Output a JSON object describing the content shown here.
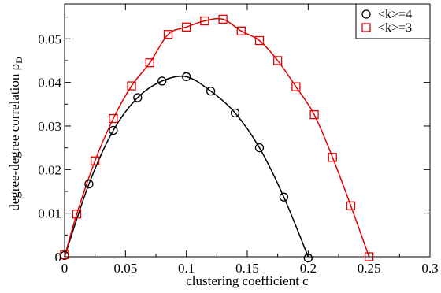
{
  "chart_data": {
    "type": "scatter",
    "xlabel": "clustering coefficient c",
    "ylabel_main": "degree-degree correlation ρ",
    "ylabel_sub": "D",
    "xlim": [
      0,
      0.3
    ],
    "ylim": [
      0,
      0.058
    ],
    "x_ticks": [
      0,
      0.05,
      0.1,
      0.15,
      0.2,
      0.25,
      0.3
    ],
    "x_tick_labels": [
      "0",
      "0.05",
      "0.1",
      "0.15",
      "0.2",
      "0.25",
      "0.3"
    ],
    "y_ticks": [
      0,
      0.01,
      0.02,
      0.03,
      0.04,
      0.05
    ],
    "y_tick_labels": [
      "0",
      "0.01",
      "0.02",
      "0.03",
      "0.04",
      "0.05"
    ],
    "legend_position": "top-right",
    "grid": false,
    "series": [
      {
        "name": "<k>=4",
        "marker": "circle",
        "color": "#000000",
        "x": [
          0,
          0.02,
          0.04,
          0.06,
          0.08,
          0.1,
          0.12,
          0.14,
          0.16,
          0.18,
          0.2
        ],
        "y": [
          0.0003,
          0.0167,
          0.029,
          0.0365,
          0.0403,
          0.0413,
          0.038,
          0.033,
          0.025,
          0.0137,
          -0.0003
        ]
      },
      {
        "name": "<k>=3",
        "marker": "square",
        "color": "#e00000",
        "x": [
          0,
          0.01,
          0.025,
          0.04,
          0.055,
          0.07,
          0.085,
          0.1,
          0.115,
          0.13,
          0.145,
          0.16,
          0.175,
          0.19,
          0.205,
          0.22,
          0.235,
          0.25
        ],
        "y": [
          0.0005,
          0.0098,
          0.022,
          0.0317,
          0.0392,
          0.0445,
          0.051,
          0.0527,
          0.0541,
          0.0545,
          0.0518,
          0.0496,
          0.045,
          0.039,
          0.0326,
          0.0228,
          0.0117,
          0
        ]
      }
    ],
    "fits": [
      {
        "color": "#000000",
        "x": [
          0,
          0.02,
          0.04,
          0.06,
          0.08,
          0.1,
          0.12,
          0.14,
          0.16,
          0.18,
          0.2
        ],
        "y": [
          0,
          0.0167,
          0.029,
          0.0365,
          0.0403,
          0.0413,
          0.038,
          0.033,
          0.025,
          0.0137,
          0
        ]
      },
      {
        "color": "#e00000",
        "x": [
          0,
          0.01,
          0.025,
          0.04,
          0.055,
          0.07,
          0.085,
          0.1,
          0.115,
          0.13,
          0.145,
          0.16,
          0.175,
          0.19,
          0.205,
          0.22,
          0.235,
          0.25
        ],
        "y": [
          0,
          0.0098,
          0.022,
          0.0317,
          0.0392,
          0.0445,
          0.051,
          0.0527,
          0.0541,
          0.0545,
          0.0518,
          0.0496,
          0.045,
          0.039,
          0.0326,
          0.0228,
          0.0117,
          0
        ]
      }
    ]
  }
}
